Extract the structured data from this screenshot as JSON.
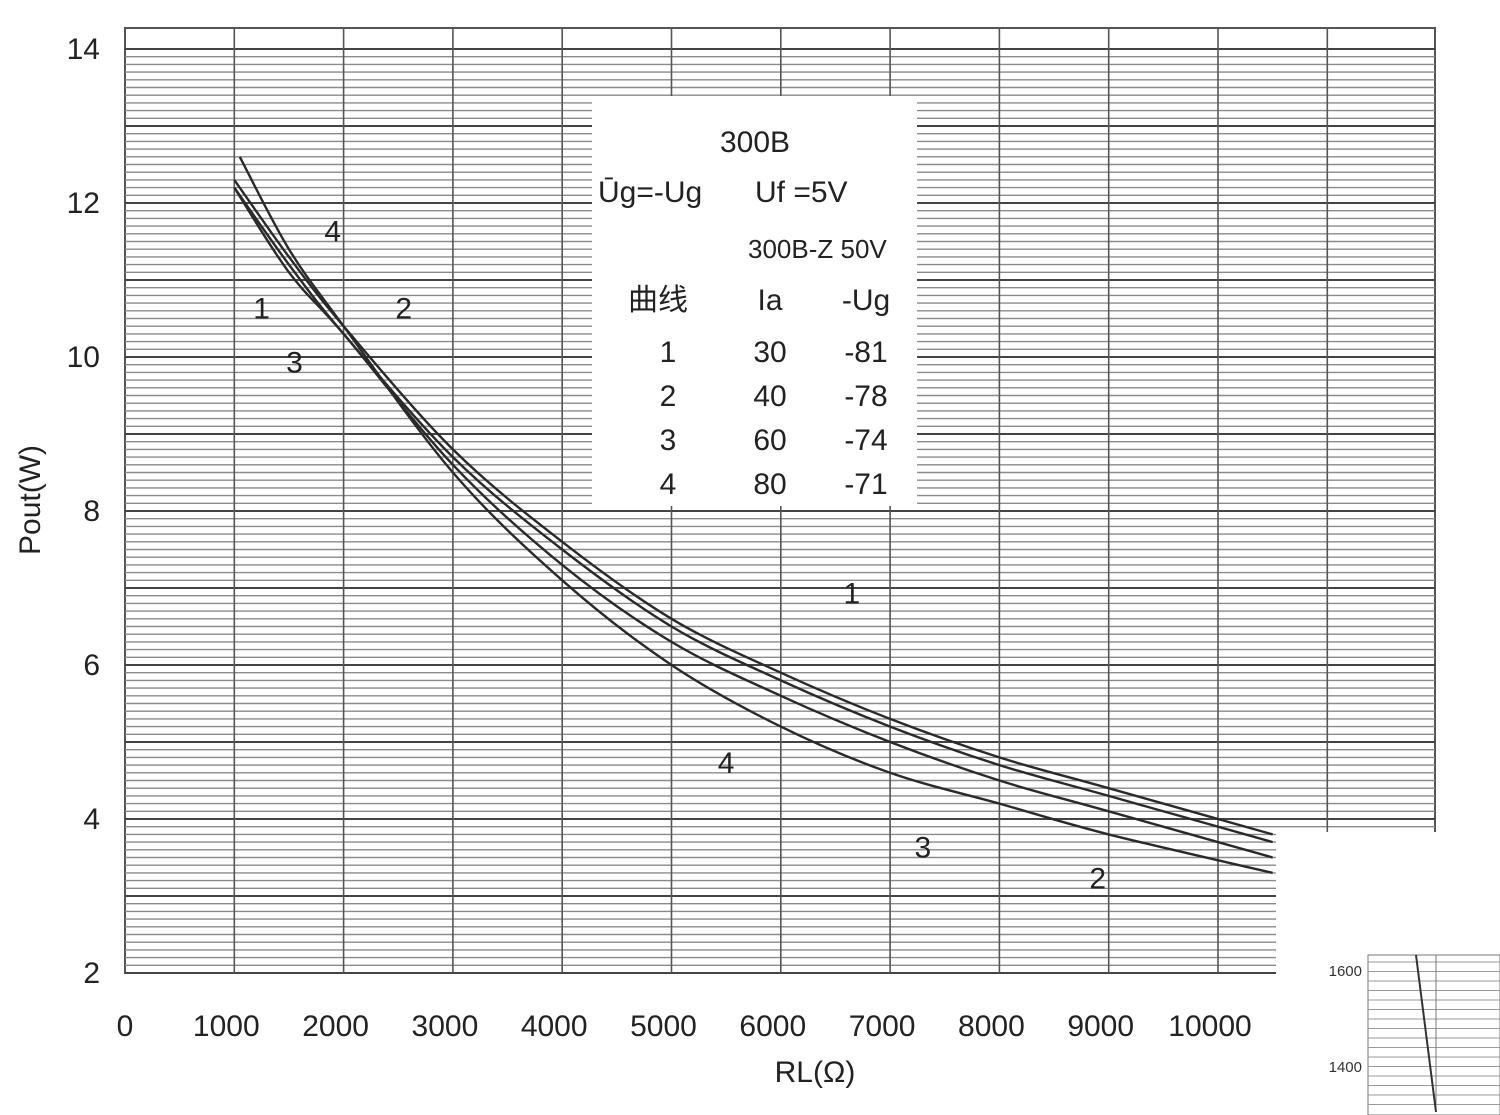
{
  "chart_data": {
    "type": "line",
    "title": "",
    "xlabel": "RL(Ω)",
    "ylabel": "Pout(W)",
    "xlim": [
      0,
      10500
    ],
    "ylim": [
      2,
      14
    ],
    "x_ticks": [
      "0",
      "1000",
      "2000",
      "3000",
      "4000",
      "5000",
      "6000",
      "7000",
      "8000",
      "9000",
      "10000"
    ],
    "y_ticks": [
      "2",
      "4",
      "6",
      "8",
      "10",
      "12",
      "14"
    ],
    "grid": "dense horizontal and vertical lines",
    "legend": {
      "tube": "300B",
      "condition_1": "Ūg=-Ug",
      "condition_2": "Uf =5V",
      "condition_3": "300B-Z 50V",
      "columns": [
        "曲线",
        "Ia",
        "-Ug"
      ],
      "rows": [
        [
          "1",
          "30",
          "-81"
        ],
        [
          "2",
          "40",
          "-78"
        ],
        [
          "3",
          "60",
          "-74"
        ],
        [
          "4",
          "80",
          "-71"
        ]
      ]
    },
    "series": [
      {
        "name": "1",
        "x": [
          1000,
          1500,
          2000,
          3000,
          4000,
          5000,
          6000,
          7000,
          8000,
          9000,
          10500
        ],
        "y": [
          12.2,
          11.2,
          10.3,
          8.7,
          7.5,
          6.5,
          5.8,
          5.2,
          4.7,
          4.3,
          3.7
        ]
      },
      {
        "name": "2",
        "x": [
          1000,
          1500,
          2000,
          3000,
          4000,
          5000,
          6000,
          7000,
          8000,
          9000,
          10500
        ],
        "y": [
          12.3,
          11.3,
          10.4,
          8.8,
          7.6,
          6.6,
          5.9,
          5.3,
          4.8,
          4.4,
          3.8
        ]
      },
      {
        "name": "3",
        "x": [
          1000,
          1500,
          2000,
          3000,
          4000,
          5000,
          6000,
          7000,
          8000,
          9000,
          10500
        ],
        "y": [
          12.2,
          11.1,
          10.3,
          8.6,
          7.3,
          6.3,
          5.6,
          5.0,
          4.5,
          4.1,
          3.5
        ]
      },
      {
        "name": "4",
        "x": [
          1050,
          1500,
          2000,
          3000,
          4000,
          5000,
          6000,
          7000,
          8000,
          9000,
          10500
        ],
        "y": [
          12.6,
          11.4,
          10.4,
          8.5,
          7.1,
          6.0,
          5.2,
          4.6,
          4.2,
          3.8,
          3.3
        ]
      }
    ],
    "curve_labels": [
      {
        "text": "1",
        "x": 1250,
        "y": 10.5
      },
      {
        "text": "2",
        "x": 2550,
        "y": 10.5
      },
      {
        "text": "3",
        "x": 1550,
        "y": 9.8
      },
      {
        "text": "4",
        "x": 1900,
        "y": 11.5
      },
      {
        "text": "1",
        "x": 6650,
        "y": 6.8
      },
      {
        "text": "4",
        "x": 5500,
        "y": 4.6
      },
      {
        "text": "3",
        "x": 7300,
        "y": 3.5
      },
      {
        "text": "2",
        "x": 8900,
        "y": 3.1
      }
    ]
  },
  "inset": {
    "y_ticks": [
      "1600",
      "1400"
    ]
  }
}
